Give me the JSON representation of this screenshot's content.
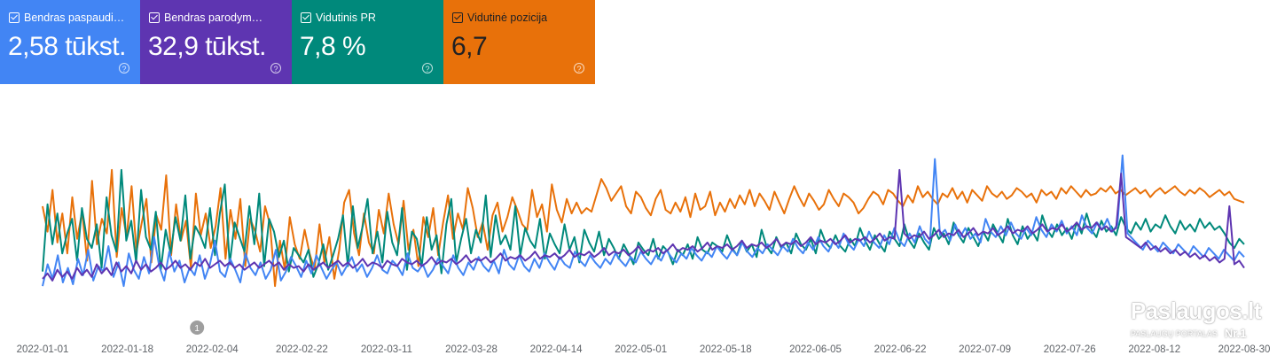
{
  "metrics": [
    {
      "label": "Bendras paspaudi…",
      "value": "2,58 tūkst.",
      "color": "#4285f4"
    },
    {
      "label": "Bendras parodym…",
      "value": "32,9 tūkst.",
      "color": "#5e35b1"
    },
    {
      "label": "Vidutinis PR",
      "value": "7,8 %",
      "color": "#00897b"
    },
    {
      "label": "Vidutinė pozicija",
      "value": "6,7",
      "color": "#e8710a"
    }
  ],
  "help_glyph": "?",
  "annotation": {
    "label": "1",
    "date": "2022-02-04"
  },
  "watermark": {
    "title": "Paslaugos.lt",
    "subtitle": "PASLAUGŲ PORTALAS",
    "badge": "Nr.1"
  },
  "chart_data": {
    "type": "line",
    "x_start": "2022-01-01",
    "x_end": "2022-08-30",
    "x_ticks": [
      "2022-01-01",
      "2022-01-18",
      "2022-02-04",
      "2022-02-22",
      "2022-03-11",
      "2022-03-28",
      "2022-04-14",
      "2022-05-01",
      "2022-05-18",
      "2022-06-05",
      "2022-06-22",
      "2022-07-09",
      "2022-07-26",
      "2022-08-12",
      "2022-08-30"
    ],
    "grid": false,
    "legend": "none",
    "series_colors": {
      "clicks": "#4285f4",
      "impressions": "#5e35b1",
      "ctr": "#00897b",
      "position": "#e8710a"
    },
    "series": [
      {
        "key": "position",
        "color": "#e8710a",
        "values": [
          0.62,
          0.48,
          0.71,
          0.42,
          0.58,
          0.36,
          0.67,
          0.44,
          0.59,
          0.32,
          0.76,
          0.41,
          0.55,
          0.47,
          0.82,
          0.34,
          0.61,
          0.45,
          0.73,
          0.37,
          0.52,
          0.66,
          0.31,
          0.57,
          0.49,
          0.79,
          0.35,
          0.63,
          0.43,
          0.54,
          0.28,
          0.69,
          0.46,
          0.58,
          0.39,
          0.51,
          0.72,
          0.33,
          0.6,
          0.44,
          0.66,
          0.29,
          0.55,
          0.48,
          0.37,
          0.62,
          0.52,
          0.18,
          0.43,
          0.27,
          0.56,
          0.41,
          0.33,
          0.49,
          0.36,
          0.27,
          0.52,
          0.31,
          0.45,
          0.22,
          0.38,
          0.64,
          0.71,
          0.47,
          0.35,
          0.58,
          0.42,
          0.36,
          0.6,
          0.47,
          0.69,
          0.52,
          0.41,
          0.65,
          0.38,
          0.49,
          0.29,
          0.56,
          0.45,
          0.61,
          0.35,
          0.53,
          0.68,
          0.44,
          0.58,
          0.49,
          0.72,
          0.61,
          0.45,
          0.53,
          0.38,
          0.57,
          0.64,
          0.48,
          0.56,
          0.67,
          0.6,
          0.52,
          0.49,
          0.71,
          0.56,
          0.63,
          0.48,
          0.74,
          0.6,
          0.53,
          0.66,
          0.58,
          0.64,
          0.58,
          0.61,
          0.59,
          0.68,
          0.77,
          0.72,
          0.65,
          0.69,
          0.73,
          0.62,
          0.58,
          0.7,
          0.67,
          0.61,
          0.57,
          0.66,
          0.71,
          0.6,
          0.58,
          0.64,
          0.59,
          0.67,
          0.56,
          0.69,
          0.6,
          0.62,
          0.7,
          0.57,
          0.64,
          0.59,
          0.66,
          0.61,
          0.68,
          0.63,
          0.71,
          0.62,
          0.69,
          0.65,
          0.6,
          0.7,
          0.64,
          0.58,
          0.66,
          0.73,
          0.67,
          0.62,
          0.69,
          0.65,
          0.6,
          0.63,
          0.71,
          0.66,
          0.62,
          0.69,
          0.67,
          0.64,
          0.58,
          0.61,
          0.66,
          0.7,
          0.68,
          0.63,
          0.71,
          0.69,
          0.65,
          0.62,
          0.68,
          0.64,
          0.73,
          0.67,
          0.7,
          0.66,
          0.63,
          0.69,
          0.67,
          0.72,
          0.66,
          0.7,
          0.64,
          0.71,
          0.68,
          0.65,
          0.73,
          0.69,
          0.67,
          0.7,
          0.66,
          0.68,
          0.72,
          0.7,
          0.67,
          0.69,
          0.64,
          0.71,
          0.68,
          0.7,
          0.66,
          0.72,
          0.69,
          0.73,
          0.7,
          0.67,
          0.71,
          0.68,
          0.69,
          0.72,
          0.7,
          0.73,
          0.69,
          0.71,
          0.68,
          0.7,
          0.72,
          0.69,
          0.71,
          0.67,
          0.7,
          0.72,
          0.69,
          0.71,
          0.73,
          0.7,
          0.68,
          0.71,
          0.69,
          0.72,
          0.7,
          0.67,
          0.69,
          0.71,
          0.68,
          0.7,
          0.66,
          0.65,
          0.64
        ]
      },
      {
        "key": "ctr",
        "color": "#00897b",
        "values": [
          0.26,
          0.63,
          0.41,
          0.58,
          0.36,
          0.47,
          0.55,
          0.32,
          0.61,
          0.44,
          0.39,
          0.52,
          0.28,
          0.67,
          0.46,
          0.37,
          0.82,
          0.43,
          0.54,
          0.31,
          0.71,
          0.45,
          0.38,
          0.59,
          0.27,
          0.49,
          0.36,
          0.56,
          0.43,
          0.68,
          0.33,
          0.51,
          0.46,
          0.39,
          0.61,
          0.35,
          0.58,
          0.74,
          0.3,
          0.53,
          0.45,
          0.37,
          0.62,
          0.41,
          0.69,
          0.29,
          0.55,
          0.48,
          0.34,
          0.43,
          0.26,
          0.39,
          0.35,
          0.31,
          0.38,
          0.23,
          0.3,
          0.41,
          0.27,
          0.35,
          0.44,
          0.57,
          0.29,
          0.62,
          0.39,
          0.51,
          0.66,
          0.36,
          0.48,
          0.31,
          0.59,
          0.42,
          0.35,
          0.61,
          0.27,
          0.48,
          0.44,
          0.29,
          0.56,
          0.38,
          0.46,
          0.25,
          0.52,
          0.66,
          0.31,
          0.44,
          0.55,
          0.36,
          0.49,
          0.42,
          0.68,
          0.34,
          0.57,
          0.41,
          0.46,
          0.38,
          0.62,
          0.35,
          0.5,
          0.43,
          0.39,
          0.55,
          0.33,
          0.47,
          0.41,
          0.36,
          0.52,
          0.38,
          0.45,
          0.31,
          0.49,
          0.42,
          0.37,
          0.48,
          0.35,
          0.44,
          0.39,
          0.33,
          0.41,
          0.36,
          0.3,
          0.42,
          0.38,
          0.35,
          0.44,
          0.33,
          0.4,
          0.37,
          0.3,
          0.38,
          0.35,
          0.41,
          0.33,
          0.45,
          0.38,
          0.36,
          0.42,
          0.4,
          0.37,
          0.46,
          0.39,
          0.35,
          0.43,
          0.37,
          0.41,
          0.34,
          0.49,
          0.4,
          0.36,
          0.45,
          0.39,
          0.42,
          0.36,
          0.47,
          0.41,
          0.38,
          0.44,
          0.36,
          0.49,
          0.42,
          0.39,
          0.46,
          0.4,
          0.37,
          0.44,
          0.4,
          0.5,
          0.43,
          0.38,
          0.46,
          0.41,
          0.37,
          0.48,
          0.44,
          0.4,
          0.52,
          0.43,
          0.39,
          0.47,
          0.42,
          0.38,
          0.5,
          0.44,
          0.47,
          0.41,
          0.53,
          0.46,
          0.42,
          0.5,
          0.45,
          0.4,
          0.48,
          0.43,
          0.52,
          0.47,
          0.42,
          0.55,
          0.46,
          0.41,
          0.51,
          0.44,
          0.48,
          0.43,
          0.57,
          0.49,
          0.45,
          0.52,
          0.46,
          0.5,
          0.44,
          0.53,
          0.47,
          0.58,
          0.49,
          0.45,
          0.54,
          0.48,
          0.51,
          0.46,
          0.56,
          0.5,
          0.47,
          0.53,
          0.49,
          0.55,
          0.48,
          0.52,
          0.5,
          0.57,
          0.51,
          0.47,
          0.54,
          0.49,
          0.52,
          0.48,
          0.55,
          0.5,
          0.53,
          0.49,
          0.51,
          0.47,
          0.42,
          0.39,
          0.44,
          0.41
        ]
      },
      {
        "key": "clicks",
        "color": "#4285f4",
        "values": [
          0.18,
          0.3,
          0.22,
          0.35,
          0.2,
          0.28,
          0.19,
          0.33,
          0.24,
          0.38,
          0.21,
          0.29,
          0.26,
          0.4,
          0.23,
          0.31,
          0.18,
          0.36,
          0.27,
          0.22,
          0.34,
          0.25,
          0.45,
          0.29,
          0.21,
          0.37,
          0.26,
          0.32,
          0.2,
          0.28,
          0.24,
          0.35,
          0.22,
          0.3,
          0.43,
          0.26,
          0.23,
          0.33,
          0.27,
          0.2,
          0.36,
          0.28,
          0.24,
          0.31,
          0.22,
          0.27,
          0.38,
          0.21,
          0.26,
          0.34,
          0.29,
          0.23,
          0.32,
          0.25,
          0.35,
          0.28,
          0.22,
          0.27,
          0.31,
          0.24,
          0.29,
          0.34,
          0.26,
          0.3,
          0.23,
          0.28,
          0.35,
          0.27,
          0.25,
          0.32,
          0.29,
          0.24,
          0.36,
          0.28,
          0.26,
          0.3,
          0.23,
          0.27,
          0.33,
          0.29,
          0.25,
          0.35,
          0.28,
          0.24,
          0.31,
          0.27,
          0.34,
          0.29,
          0.26,
          0.32,
          0.25,
          0.38,
          0.3,
          0.27,
          0.35,
          0.29,
          0.26,
          0.33,
          0.28,
          0.36,
          0.31,
          0.27,
          0.34,
          0.3,
          0.28,
          0.37,
          0.32,
          0.29,
          0.35,
          0.31,
          0.28,
          0.33,
          0.3,
          0.36,
          0.32,
          0.29,
          0.34,
          0.31,
          0.37,
          0.33,
          0.3,
          0.35,
          0.32,
          0.38,
          0.34,
          0.31,
          0.36,
          0.33,
          0.39,
          0.35,
          0.32,
          0.37,
          0.34,
          0.4,
          0.36,
          0.33,
          0.38,
          0.35,
          0.42,
          0.37,
          0.34,
          0.39,
          0.36,
          0.41,
          0.38,
          0.35,
          0.4,
          0.37,
          0.44,
          0.39,
          0.36,
          0.42,
          0.38,
          0.45,
          0.4,
          0.37,
          0.43,
          0.39,
          0.47,
          0.41,
          0.38,
          0.44,
          0.4,
          0.48,
          0.42,
          0.39,
          0.46,
          0.41,
          0.5,
          0.43,
          0.4,
          0.47,
          0.42,
          0.51,
          0.44,
          0.41,
          0.88,
          0.46,
          0.49,
          0.43,
          0.52,
          0.45,
          0.5,
          0.44,
          0.47,
          0.42,
          0.55,
          0.48,
          0.45,
          0.51,
          0.46,
          0.53,
          0.47,
          0.44,
          0.5,
          0.46,
          0.56,
          0.49,
          0.45,
          0.52,
          0.48,
          0.54,
          0.47,
          0.51,
          0.46,
          0.57,
          0.5,
          0.47,
          0.53,
          0.49,
          0.55,
          0.48,
          0.52,
          0.9,
          0.47,
          0.44,
          0.41,
          0.38,
          0.43,
          0.4,
          0.37,
          0.42,
          0.39,
          0.36,
          0.41,
          0.38,
          0.35,
          0.4,
          0.37,
          0.34,
          0.39,
          0.36,
          0.33,
          0.38,
          0.35,
          0.32,
          0.37,
          0.34
        ]
      },
      {
        "key": "impressions",
        "color": "#5e35b1",
        "values": [
          0.22,
          0.25,
          0.21,
          0.27,
          0.23,
          0.26,
          0.22,
          0.28,
          0.24,
          0.27,
          0.23,
          0.3,
          0.25,
          0.28,
          0.24,
          0.31,
          0.26,
          0.29,
          0.25,
          0.32,
          0.27,
          0.3,
          0.26,
          0.28,
          0.31,
          0.27,
          0.29,
          0.32,
          0.28,
          0.3,
          0.27,
          0.31,
          0.29,
          0.33,
          0.28,
          0.3,
          0.32,
          0.29,
          0.31,
          0.28,
          0.3,
          0.27,
          0.29,
          0.31,
          0.28,
          0.3,
          0.32,
          0.29,
          0.31,
          0.27,
          0.3,
          0.28,
          0.29,
          0.26,
          0.3,
          0.27,
          0.29,
          0.31,
          0.28,
          0.3,
          0.32,
          0.29,
          0.31,
          0.28,
          0.3,
          0.33,
          0.29,
          0.31,
          0.3,
          0.28,
          0.32,
          0.3,
          0.29,
          0.33,
          0.31,
          0.3,
          0.32,
          0.29,
          0.31,
          0.34,
          0.3,
          0.32,
          0.31,
          0.33,
          0.3,
          0.32,
          0.35,
          0.31,
          0.33,
          0.32,
          0.34,
          0.31,
          0.33,
          0.36,
          0.32,
          0.34,
          0.33,
          0.35,
          0.32,
          0.34,
          0.37,
          0.33,
          0.35,
          0.34,
          0.36,
          0.33,
          0.35,
          0.38,
          0.34,
          0.36,
          0.35,
          0.37,
          0.34,
          0.36,
          0.39,
          0.35,
          0.37,
          0.36,
          0.38,
          0.35,
          0.37,
          0.4,
          0.36,
          0.38,
          0.37,
          0.39,
          0.36,
          0.38,
          0.41,
          0.37,
          0.39,
          0.38,
          0.4,
          0.37,
          0.39,
          0.42,
          0.38,
          0.4,
          0.39,
          0.41,
          0.38,
          0.4,
          0.43,
          0.39,
          0.41,
          0.4,
          0.42,
          0.39,
          0.41,
          0.44,
          0.4,
          0.42,
          0.41,
          0.43,
          0.4,
          0.42,
          0.45,
          0.41,
          0.43,
          0.42,
          0.44,
          0.41,
          0.43,
          0.46,
          0.42,
          0.44,
          0.43,
          0.45,
          0.42,
          0.44,
          0.47,
          0.43,
          0.45,
          0.44,
          0.82,
          0.47,
          0.44,
          0.46,
          0.45,
          0.48,
          0.44,
          0.46,
          0.49,
          0.45,
          0.47,
          0.46,
          0.49,
          0.45,
          0.47,
          0.5,
          0.46,
          0.48,
          0.47,
          0.5,
          0.46,
          0.48,
          0.51,
          0.47,
          0.49,
          0.48,
          0.51,
          0.47,
          0.49,
          0.52,
          0.48,
          0.5,
          0.49,
          0.52,
          0.48,
          0.5,
          0.53,
          0.49,
          0.51,
          0.5,
          0.53,
          0.49,
          0.51,
          0.48,
          0.5,
          0.8,
          0.45,
          0.43,
          0.41,
          0.39,
          0.42,
          0.38,
          0.4,
          0.37,
          0.39,
          0.36,
          0.38,
          0.35,
          0.37,
          0.34,
          0.36,
          0.33,
          0.35,
          0.32,
          0.34,
          0.31,
          0.33,
          0.62,
          0.3,
          0.32,
          0.28
        ]
      }
    ]
  }
}
